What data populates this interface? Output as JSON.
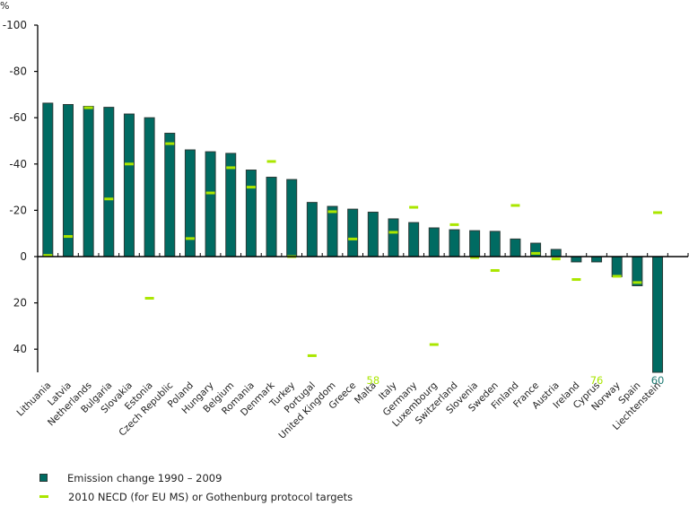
{
  "chart_data": {
    "type": "bar",
    "title": "",
    "ylabel": "%",
    "xlabel": "",
    "y_axis_inverted": true,
    "ylim": [
      -100,
      50
    ],
    "yticks": [
      -100,
      -80,
      -60,
      -40,
      -20,
      0,
      20,
      40
    ],
    "ytick_labels": [
      "-100",
      "-80",
      "-60",
      "-40",
      "-20",
      "0",
      "20",
      "40"
    ],
    "grid": false,
    "legend_position": "bottom-left",
    "categories": [
      "Lithuania",
      "Latvia",
      "Netherlands",
      "Bulgaria",
      "Slovakia",
      "Estonia",
      "Czech Republic",
      "Poland",
      "Hungary",
      "Belgium",
      "Romania",
      "Denmark",
      "Turkey",
      "Portugal",
      "United Kingdom",
      "Greece",
      "Malta",
      "Italy",
      "Germany",
      "Luxembourg",
      "Switzerland",
      "Slovenia",
      "Sweden",
      "Finland",
      "France",
      "Austria",
      "Ireland",
      "Cyprus",
      "Norway",
      "Spain",
      "Liechtenstein"
    ],
    "series": [
      {
        "name": "Emission change 1990 – 2009",
        "kind": "bar",
        "color": "#006b62",
        "values": [
          -66.3,
          -65.7,
          -64.9,
          -64.5,
          -61.6,
          -60.0,
          -53.3,
          -46.1,
          -45.3,
          -44.6,
          -37.4,
          -34.3,
          -33.3,
          -23.4,
          -21.7,
          -20.5,
          -19.2,
          -16.3,
          -14.7,
          -12.4,
          -11.6,
          -11.2,
          -10.9,
          -7.6,
          -5.8,
          -3.1,
          2.3,
          2.3,
          8.7,
          12.6,
          60
        ]
      },
      {
        "name": "2010 NECD (for EU MS) or Gothenburg protocol targets",
        "kind": "marker",
        "color": "#aae600",
        "values": [
          -0.5,
          -8.7,
          -64.3,
          -24.9,
          -40.0,
          18.0,
          -48.8,
          -7.8,
          -27.5,
          -38.4,
          -30.0,
          -41.1,
          0.0,
          42.8,
          -19.4,
          -7.6,
          58,
          -10.5,
          -21.3,
          38.0,
          -13.8,
          0.4,
          6.0,
          -22.1,
          -1.4,
          1.0,
          9.9,
          76,
          8.5,
          11.2,
          -19.0
        ]
      }
    ],
    "offscale_annotations": [
      {
        "category": "Malta",
        "series": "2010 NECD (for EU MS) or Gothenburg protocol targets",
        "label": "58",
        "color": "#aae600"
      },
      {
        "category": "Cyprus",
        "series": "2010 NECD (for EU MS) or Gothenburg protocol targets",
        "label": "76",
        "color": "#aae600"
      },
      {
        "category": "Liechtenstein",
        "series": "Emission change 1990 – 2009",
        "label": "60",
        "color": "#1f7a73"
      }
    ]
  },
  "legend": {
    "items": [
      {
        "label": "Emission change 1990 – 2009"
      },
      {
        "label": "2010 NECD (for EU MS) or Gothenburg protocol targets"
      }
    ]
  }
}
